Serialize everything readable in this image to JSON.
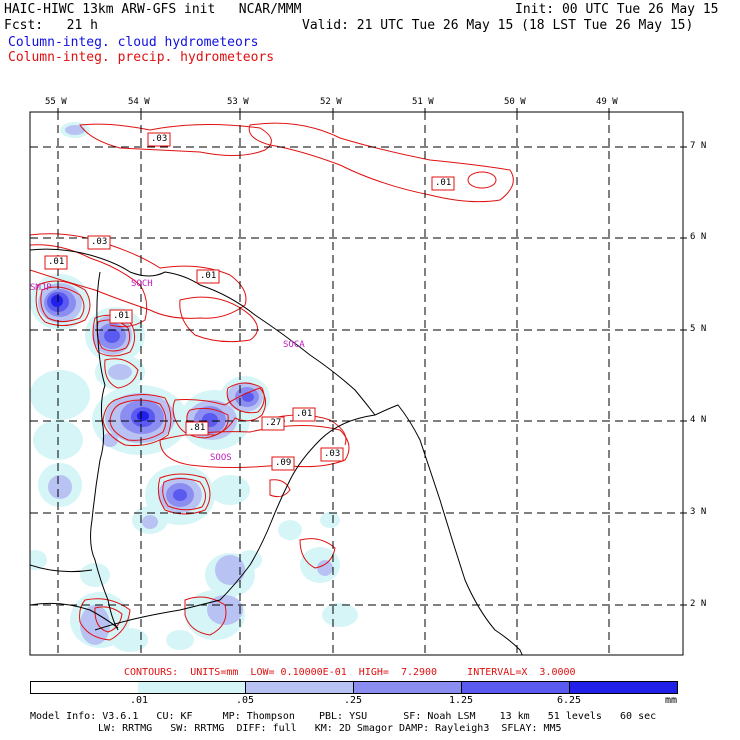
{
  "header": {
    "line1_left": "HAIC-HIWC 13km ARW-GFS init   NCAR/MMM",
    "line1_right": "Init: 00 UTC Tue 26 May 15",
    "line2_left": "Fcst:   21 h",
    "line2_right": "Valid: 21 UTC Tue 26 May 15 (18 LST Tue 26 May 15)",
    "legend_cloud": "Column-integ. cloud hydrometeors",
    "legend_precip": "Column-integ. precip. hydrometeors"
  },
  "colors": {
    "cloud": "#1010e0",
    "precip": "#e01010",
    "shade_levels": [
      "#d6f5f7",
      "#b9c3f3",
      "#8b8ef0",
      "#5a5af0",
      "#2020e8"
    ]
  },
  "axes": {
    "lon_labels": [
      "55 W",
      "54 W",
      "53 W",
      "52 W",
      "51 W",
      "50 W",
      "49 W"
    ],
    "lat_labels": [
      "7 N",
      "6 N",
      "5 N",
      "4 N",
      "3 N",
      "2 N"
    ]
  },
  "station_labels": [
    "SMJP",
    "SOCH",
    "SOCA",
    "SOOS"
  ],
  "contour_labels": [
    ".03",
    ".01",
    ".03",
    ".01",
    ".01",
    ".01",
    ".01",
    ".27",
    ".81",
    ".09",
    ".03"
  ],
  "footer": {
    "contours_line": "CONTOURS:  UNITS=mm  LOW= 0.10000E-01  HIGH=  7.2900     INTERVAL=X  3.0000",
    "colorbar_ticks": [
      ".01",
      ".05",
      ".25",
      "1.25",
      "6.25"
    ],
    "colorbar_unit": "mm",
    "model_info_1": "Model Info: V3.6.1   CU: KF     MP: Thompson    PBL: YSU      SF: Noah LSM    13 km   51 levels   60 sec",
    "model_info_2": "LW: RRTMG   SW: RRTMG  DIFF: full   KM: 2D Smagor DAMP: Rayleigh3  SFLAY: MM5"
  }
}
